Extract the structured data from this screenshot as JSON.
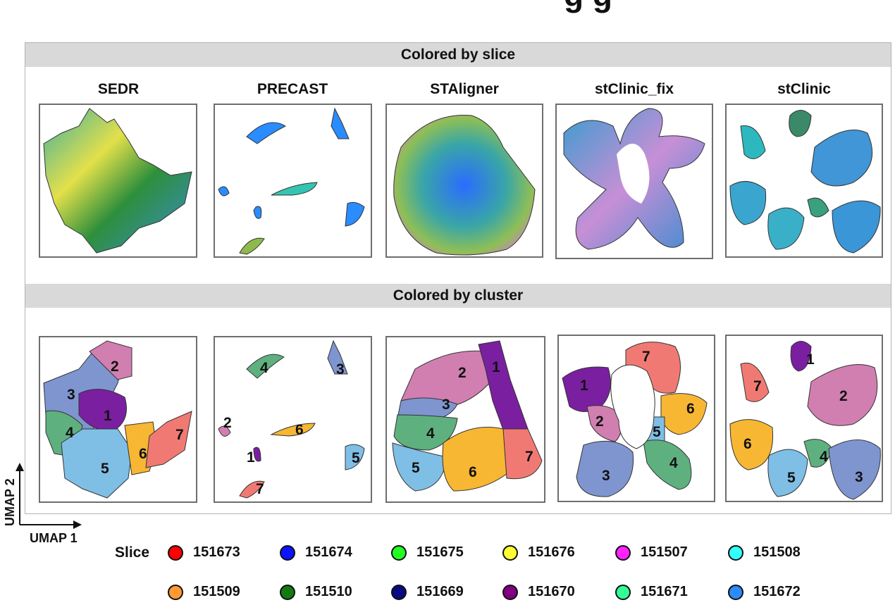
{
  "figure": {
    "title_fragment": "g      g",
    "row1_banner": "Colored by slice",
    "row2_banner": "Colored by cluster",
    "methods": [
      "SEDR",
      "PRECAST",
      "STAligner",
      "stClinic_fix",
      "stClinic"
    ],
    "axis_x_label": "UMAP 1",
    "axis_y_label": "UMAP 2"
  },
  "legend": {
    "title": "Slice",
    "items": [
      {
        "label": "151673",
        "color": "#ff0000"
      },
      {
        "label": "151674",
        "color": "#0a14ff"
      },
      {
        "label": "151675",
        "color": "#22ff22"
      },
      {
        "label": "151676",
        "color": "#ffff33"
      },
      {
        "label": "151507",
        "color": "#ff22ff"
      },
      {
        "label": "151508",
        "color": "#33ffff"
      },
      {
        "label": "151509",
        "color": "#ff9933"
      },
      {
        "label": "151510",
        "color": "#137a13"
      },
      {
        "label": "151669",
        "color": "#0a0a80"
      },
      {
        "label": "151670",
        "color": "#800080"
      },
      {
        "label": "151671",
        "color": "#33ff99"
      },
      {
        "label": "151672",
        "color": "#2a8cff"
      }
    ]
  },
  "cluster_colors": {
    "1": "#7a1fa0",
    "2": "#d17fb0",
    "3": "#7f95d0",
    "4": "#5fb07f",
    "5": "#7fbfe6",
    "6": "#f7b733",
    "7": "#f07a73"
  },
  "chart_data": {
    "type": "scatter",
    "xlabel": "UMAP 1",
    "ylabel": "UMAP 2",
    "clusters": [
      "1",
      "2",
      "3",
      "4",
      "5",
      "6",
      "7"
    ],
    "slices": [
      "151673",
      "151674",
      "151675",
      "151676",
      "151507",
      "151508",
      "151509",
      "151510",
      "151669",
      "151670",
      "151671",
      "151672"
    ]
  }
}
